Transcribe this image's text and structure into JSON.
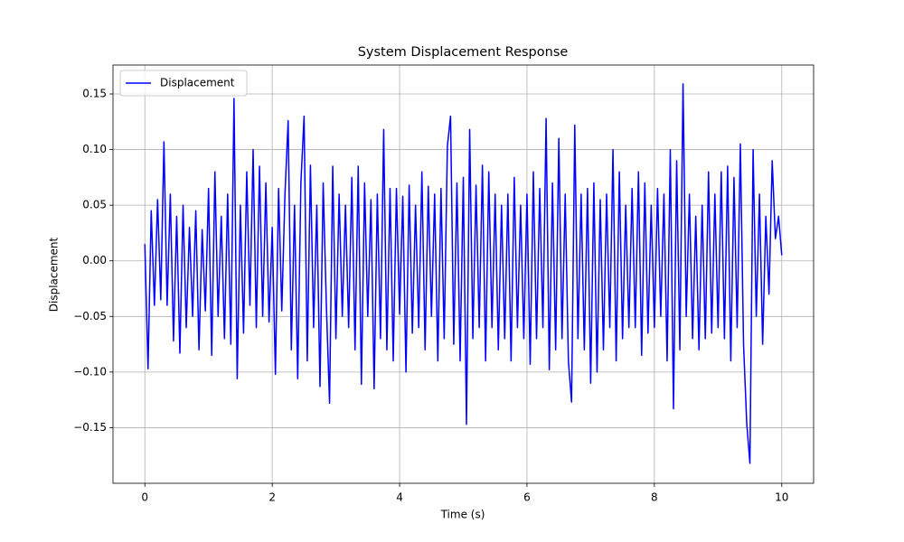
{
  "chart_data": {
    "type": "line",
    "title": "System Displacement Response",
    "xlabel": "Time (s)",
    "ylabel": "Displacement",
    "x": [
      0,
      0.05,
      0.1,
      0.15,
      0.2,
      0.25,
      0.3,
      0.35,
      0.4,
      0.45,
      0.5,
      0.55,
      0.6,
      0.65,
      0.7,
      0.75,
      0.8,
      0.85,
      0.9,
      0.95,
      1,
      1.05,
      1.1,
      1.15,
      1.2,
      1.25,
      1.3,
      1.35,
      1.4,
      1.45,
      1.5,
      1.55,
      1.6,
      1.65,
      1.7,
      1.75,
      1.8,
      1.85,
      1.9,
      1.95,
      2,
      2.05,
      2.1,
      2.15,
      2.2,
      2.25,
      2.3,
      2.35,
      2.4,
      2.45,
      2.5,
      2.55,
      2.6,
      2.65,
      2.7,
      2.75,
      2.8,
      2.85,
      2.9,
      2.95,
      3,
      3.05,
      3.1,
      3.15,
      3.2,
      3.25,
      3.3,
      3.35,
      3.4,
      3.45,
      3.5,
      3.55,
      3.6,
      3.65,
      3.7,
      3.75,
      3.8,
      3.85,
      3.9,
      3.95,
      4,
      4.05,
      4.1,
      4.15,
      4.2,
      4.25,
      4.3,
      4.35,
      4.4,
      4.45,
      4.5,
      4.55,
      4.6,
      4.65,
      4.7,
      4.75,
      4.8,
      4.85,
      4.9,
      4.95,
      5,
      5.05,
      5.1,
      5.15,
      5.2,
      5.25,
      5.3,
      5.35,
      5.4,
      5.45,
      5.5,
      5.55,
      5.6,
      5.65,
      5.7,
      5.75,
      5.8,
      5.85,
      5.9,
      5.95,
      6,
      6.05,
      6.1,
      6.15,
      6.2,
      6.25,
      6.3,
      6.35,
      6.4,
      6.45,
      6.5,
      6.55,
      6.6,
      6.65,
      6.7,
      6.75,
      6.8,
      6.85,
      6.9,
      6.95,
      7,
      7.05,
      7.1,
      7.15,
      7.2,
      7.25,
      7.3,
      7.35,
      7.4,
      7.45,
      7.5,
      7.55,
      7.6,
      7.65,
      7.7,
      7.75,
      7.8,
      7.85,
      7.9,
      7.95,
      8,
      8.05,
      8.1,
      8.15,
      8.2,
      8.25,
      8.3,
      8.35,
      8.4,
      8.45,
      8.5,
      8.55,
      8.6,
      8.65,
      8.7,
      8.75,
      8.8,
      8.85,
      8.9,
      8.95,
      9,
      9.05,
      9.1,
      9.15,
      9.2,
      9.25,
      9.3,
      9.35,
      9.4,
      9.45,
      9.5,
      9.55,
      9.6,
      9.65,
      9.7,
      9.75,
      9.8,
      9.85,
      9.9,
      9.95,
      10
    ],
    "series": [
      {
        "name": "Displacement",
        "color": "#0000ff",
        "values": [
          0.015,
          -0.097,
          0.045,
          -0.04,
          0.055,
          -0.035,
          0.107,
          -0.04,
          0.06,
          -0.072,
          0.04,
          -0.083,
          0.05,
          -0.06,
          0.03,
          -0.05,
          0.045,
          -0.08,
          0.028,
          -0.045,
          0.065,
          -0.085,
          0.08,
          -0.05,
          0.04,
          -0.07,
          0.06,
          -0.075,
          0.146,
          -0.106,
          0.05,
          -0.065,
          0.08,
          -0.04,
          0.1,
          -0.06,
          0.085,
          -0.05,
          0.07,
          -0.055,
          0.03,
          -0.102,
          0.065,
          -0.045,
          0.06,
          0.126,
          -0.08,
          0.05,
          -0.106,
          0.07,
          0.13,
          -0.09,
          0.086,
          -0.06,
          0.05,
          -0.113,
          0.07,
          -0.04,
          -0.128,
          0.085,
          -0.07,
          0.06,
          -0.05,
          0.05,
          -0.06,
          0.075,
          -0.08,
          0.085,
          -0.111,
          0.07,
          -0.05,
          0.055,
          -0.115,
          0.06,
          -0.07,
          0.118,
          -0.08,
          0.065,
          -0.09,
          0.065,
          -0.048,
          0.058,
          -0.1,
          0.068,
          -0.065,
          0.05,
          -0.06,
          0.08,
          -0.08,
          0.067,
          -0.05,
          0.06,
          -0.09,
          0.065,
          -0.07,
          0.103,
          0.13,
          -0.075,
          0.07,
          -0.09,
          0.075,
          -0.147,
          0.118,
          -0.07,
          0.068,
          -0.06,
          0.086,
          -0.09,
          0.08,
          -0.06,
          0.06,
          -0.08,
          0.05,
          -0.07,
          0.06,
          -0.09,
          0.075,
          -0.06,
          0.05,
          -0.07,
          0.06,
          -0.093,
          0.08,
          -0.07,
          0.065,
          -0.06,
          0.128,
          -0.098,
          0.07,
          -0.08,
          0.11,
          -0.07,
          0.06,
          -0.09,
          -0.127,
          0.122,
          -0.07,
          0.06,
          -0.08,
          0.065,
          -0.11,
          0.07,
          -0.1,
          0.055,
          -0.08,
          0.06,
          -0.06,
          0.1,
          -0.09,
          0.08,
          -0.07,
          0.05,
          -0.06,
          0.065,
          -0.06,
          0.08,
          -0.085,
          0.07,
          -0.065,
          0.05,
          -0.06,
          0.065,
          -0.05,
          0.06,
          -0.09,
          0.1,
          -0.133,
          0.09,
          -0.08,
          0.159,
          -0.05,
          0.06,
          -0.07,
          0.04,
          -0.08,
          0.05,
          -0.07,
          0.08,
          -0.065,
          0.06,
          -0.06,
          0.08,
          -0.07,
          0.085,
          -0.09,
          0.075,
          -0.06,
          0.105,
          -0.075,
          -0.146,
          -0.182,
          0.1,
          -0.05,
          0.06,
          -0.075,
          0.04,
          -0.03,
          0.09,
          0.02,
          0.04,
          0.005
        ]
      }
    ],
    "xlim": [
      -0.5,
      10.5
    ],
    "ylim": [
      -0.2,
      0.176
    ],
    "xticks": [
      0,
      2,
      4,
      6,
      8,
      10
    ],
    "yticks": [
      {
        "value": -0.15,
        "label": "−0.15"
      },
      {
        "value": -0.1,
        "label": "−0.10"
      },
      {
        "value": -0.05,
        "label": "−0.05"
      },
      {
        "value": 0,
        "label": "0.00"
      },
      {
        "value": 0.05,
        "label": "0.05"
      },
      {
        "value": 0.1,
        "label": "0.10"
      },
      {
        "value": 0.15,
        "label": "0.15"
      }
    ],
    "grid": true,
    "legend": "upper left"
  }
}
